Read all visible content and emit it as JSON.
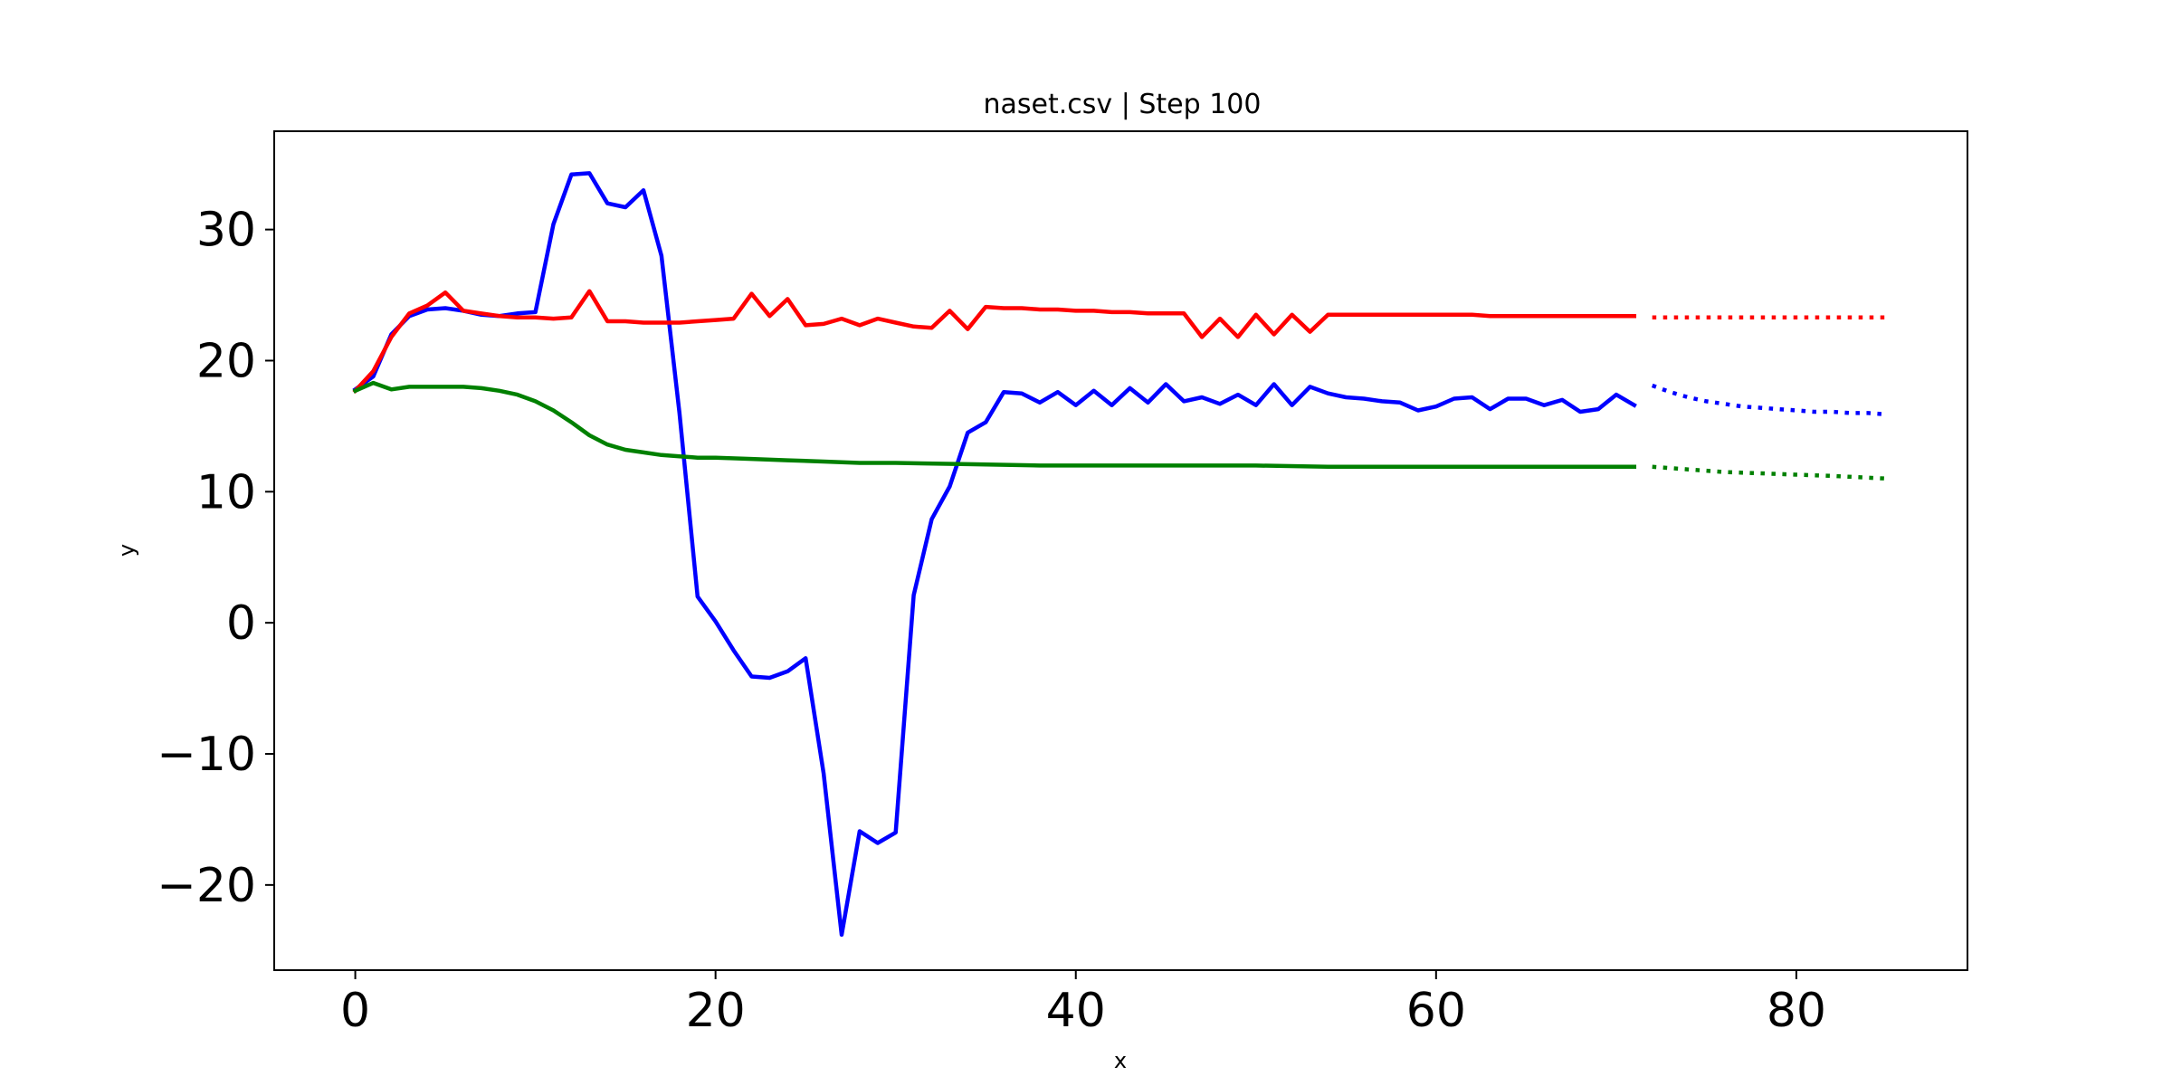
{
  "chart_data": {
    "type": "line",
    "title": "naset.csv | Step 100",
    "xlabel": "x",
    "ylabel": "y",
    "xlim": [
      -4.5,
      89.5
    ],
    "ylim": [
      -26.5,
      37.5
    ],
    "x_ticks": [
      0,
      20,
      40,
      60,
      80
    ],
    "x_tick_labels": [
      "0",
      "20",
      "40",
      "60",
      "80"
    ],
    "y_ticks": [
      -20,
      -10,
      0,
      10,
      20,
      30
    ],
    "y_tick_labels": [
      "−20",
      "−10",
      "0",
      "10",
      "20",
      "30"
    ],
    "grid": false,
    "series": [
      {
        "name": "blue",
        "color": "#0000ff",
        "style": "solid",
        "x": [
          0,
          1,
          2,
          3,
          4,
          5,
          6,
          7,
          8,
          9,
          10,
          11,
          12,
          13,
          14,
          15,
          16,
          17,
          18,
          19,
          20,
          21,
          22,
          23,
          24,
          25,
          26,
          27,
          28,
          29,
          30,
          31,
          32,
          33,
          34,
          35,
          36,
          37,
          38,
          39,
          40,
          41,
          42,
          43,
          44,
          45,
          46,
          47,
          48,
          49,
          50,
          51,
          52,
          53,
          54,
          55,
          56,
          57,
          58,
          59,
          60,
          61,
          62,
          63,
          64,
          65,
          66,
          67,
          68,
          69,
          70,
          71
        ],
        "values": [
          17.8,
          18.8,
          22.0,
          23.4,
          23.9,
          24.0,
          23.8,
          23.5,
          23.4,
          23.6,
          23.7,
          30.4,
          34.2,
          34.3,
          32.0,
          31.7,
          33.0,
          28.0,
          16.0,
          2.0,
          0.1,
          -2.1,
          -4.1,
          -4.2,
          -3.7,
          -2.7,
          -11.5,
          -23.8,
          -15.9,
          -16.8,
          -16.0,
          2.1,
          7.9,
          10.4,
          14.5,
          15.3,
          17.6,
          17.5,
          16.8,
          17.6,
          16.6,
          17.7,
          16.6,
          17.9,
          16.8,
          18.2,
          16.9,
          17.2,
          16.7,
          17.4,
          16.6,
          18.2,
          16.6,
          18.0,
          17.5,
          17.2,
          17.1,
          16.9,
          16.8,
          16.2,
          16.5,
          17.1,
          17.2,
          16.3,
          17.1,
          17.1,
          16.6,
          17.0,
          16.1,
          16.3,
          17.4,
          16.6
        ]
      },
      {
        "name": "red",
        "color": "#ff0000",
        "style": "solid",
        "x": [
          0,
          1,
          2,
          3,
          4,
          5,
          6,
          7,
          8,
          9,
          10,
          11,
          12,
          13,
          14,
          15,
          16,
          17,
          18,
          19,
          20,
          21,
          22,
          23,
          24,
          25,
          26,
          27,
          28,
          29,
          30,
          31,
          32,
          33,
          34,
          35,
          36,
          37,
          38,
          39,
          40,
          41,
          42,
          43,
          44,
          45,
          46,
          47,
          48,
          49,
          50,
          51,
          52,
          53,
          54,
          55,
          56,
          57,
          58,
          59,
          60,
          61,
          62,
          63,
          64,
          65,
          66,
          67,
          68,
          69,
          70,
          71
        ],
        "values": [
          17.7,
          19.2,
          21.8,
          23.6,
          24.2,
          25.2,
          23.8,
          23.6,
          23.4,
          23.3,
          23.3,
          23.2,
          23.3,
          25.3,
          23.0,
          23.0,
          22.9,
          22.9,
          22.9,
          23.0,
          23.1,
          23.2,
          25.1,
          23.4,
          24.7,
          22.7,
          22.8,
          23.2,
          22.7,
          23.2,
          22.9,
          22.6,
          22.5,
          23.8,
          22.4,
          24.1,
          24.0,
          24.0,
          23.9,
          23.9,
          23.8,
          23.8,
          23.7,
          23.7,
          23.6,
          23.6,
          23.6,
          21.8,
          23.2,
          21.8,
          23.5,
          22.0,
          23.5,
          22.2,
          23.5,
          23.5,
          23.5,
          23.5,
          23.5,
          23.5,
          23.5,
          23.5,
          23.5,
          23.4,
          23.4,
          23.4,
          23.4,
          23.4,
          23.4,
          23.4,
          23.4,
          23.4
        ]
      },
      {
        "name": "green",
        "color": "#008000",
        "style": "solid",
        "x": [
          0,
          1,
          2,
          3,
          4,
          5,
          6,
          7,
          8,
          9,
          10,
          11,
          12,
          13,
          14,
          15,
          16,
          17,
          18,
          19,
          20,
          22,
          24,
          26,
          28,
          30,
          34,
          38,
          42,
          46,
          50,
          54,
          58,
          62,
          66,
          71
        ],
        "values": [
          17.7,
          18.3,
          17.8,
          18.0,
          18.0,
          18.0,
          18.0,
          17.9,
          17.7,
          17.4,
          16.9,
          16.2,
          15.3,
          14.3,
          13.6,
          13.2,
          13.0,
          12.8,
          12.7,
          12.6,
          12.6,
          12.5,
          12.4,
          12.3,
          12.2,
          12.2,
          12.1,
          12.0,
          12.0,
          12.0,
          12.0,
          11.9,
          11.9,
          11.9,
          11.9,
          11.9
        ]
      },
      {
        "name": "red-forecast",
        "color": "#ff0000",
        "style": "dotted",
        "x": [
          72,
          74,
          76,
          78,
          80,
          82,
          85
        ],
        "values": [
          23.3,
          23.3,
          23.3,
          23.3,
          23.3,
          23.3,
          23.3
        ]
      },
      {
        "name": "blue-forecast",
        "color": "#0000ff",
        "style": "dotted",
        "x": [
          72,
          73,
          74,
          75,
          76,
          77,
          78,
          79,
          80,
          81,
          82,
          83,
          84,
          85
        ],
        "values": [
          18.1,
          17.6,
          17.2,
          16.9,
          16.7,
          16.5,
          16.4,
          16.3,
          16.2,
          16.1,
          16.1,
          16.0,
          16.0,
          15.9
        ]
      },
      {
        "name": "green-forecast",
        "color": "#008000",
        "style": "dotted",
        "x": [
          72,
          74,
          76,
          78,
          80,
          82,
          85
        ],
        "values": [
          11.9,
          11.7,
          11.5,
          11.4,
          11.3,
          11.2,
          11.0
        ]
      }
    ]
  }
}
